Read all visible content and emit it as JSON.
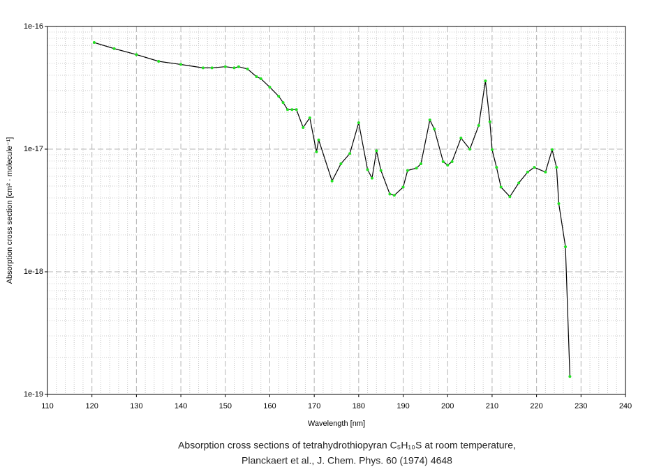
{
  "chart_data": {
    "type": "line",
    "title": [
      "Absorption cross sections of tetrahydrothiopyran C₅H₁₀S at room temperature,",
      "Planckaert et al., J. Chem. Phys. 60 (1974) 4648"
    ],
    "xlabel": "Wavelength [nm]",
    "ylabel": "Absorption cross section [cm² · molecule⁻¹]",
    "xlim": [
      110,
      240
    ],
    "xticks": [
      110,
      120,
      130,
      140,
      150,
      160,
      170,
      180,
      190,
      200,
      210,
      220,
      230,
      240
    ],
    "xminorticks": [
      112,
      114,
      116,
      118,
      122,
      124,
      126,
      128,
      132,
      134,
      136,
      138,
      142,
      144,
      146,
      148,
      152,
      154,
      156,
      158,
      162,
      164,
      166,
      168,
      172,
      174,
      176,
      178,
      182,
      184,
      186,
      188,
      192,
      194,
      196,
      198,
      202,
      204,
      206,
      208,
      212,
      214,
      216,
      218,
      222,
      224,
      226,
      228,
      232,
      234,
      236,
      238
    ],
    "ylim": [
      1e-19,
      1e-16
    ],
    "log_y": true,
    "yticks": [
      {
        "value": 1e-19,
        "label": "1e-19"
      },
      {
        "value": 1e-18,
        "label": "1e-18"
      },
      {
        "value": 1e-17,
        "label": "1e-17"
      },
      {
        "value": 1e-16,
        "label": "1e-16"
      }
    ],
    "yminorticks": [
      2e-19,
      3e-19,
      4e-19,
      5e-19,
      6e-19,
      7e-19,
      8e-19,
      9e-19,
      2e-18,
      3e-18,
      4e-18,
      5e-18,
      6e-18,
      7e-18,
      8e-18,
      9e-18,
      2e-17,
      3e-17,
      4e-17,
      5e-17,
      6e-17,
      7e-17,
      8e-17,
      9e-17
    ],
    "grid": true,
    "series": [
      {
        "color": "#000000",
        "marker_color": "#22e022",
        "x": [
          120.5,
          125,
          130,
          135,
          140,
          145,
          147,
          150,
          152,
          153,
          155,
          157,
          158,
          160,
          162,
          163,
          164,
          165,
          166,
          167.5,
          169,
          170.5,
          171,
          174,
          176,
          178,
          180,
          182,
          183,
          184,
          185,
          187,
          188,
          190,
          191,
          193,
          194,
          196,
          197,
          199,
          200,
          201,
          203,
          205,
          207,
          208.5,
          209.5,
          210,
          211,
          212,
          214,
          216,
          218,
          219.5,
          222,
          223.5,
          224.5,
          225,
          226.5,
          227.5
        ],
        "values": [
          7.4e-17,
          6.6e-17,
          5.9e-17,
          5.2e-17,
          4.9e-17,
          4.6e-17,
          4.6e-17,
          4.7e-17,
          4.6e-17,
          4.7e-17,
          4.5e-17,
          3.9e-17,
          3.75e-17,
          3.2e-17,
          2.7e-17,
          2.4e-17,
          2.1e-17,
          2.1e-17,
          2.1e-17,
          1.5e-17,
          1.8e-17,
          9.5e-18,
          1.19e-17,
          5.5e-18,
          7.6e-18,
          9.2e-18,
          1.64e-17,
          6.8e-18,
          5.8e-18,
          9.7e-18,
          6.7e-18,
          4.3e-18,
          4.2e-18,
          4.9e-18,
          6.7e-18,
          7e-18,
          7.6e-18,
          1.73e-17,
          1.46e-17,
          7.9e-18,
          7.4e-18,
          7.9e-18,
          1.23e-17,
          1e-17,
          1.56e-17,
          3.6e-17,
          1.67e-17,
          9.9e-18,
          7.1e-18,
          4.9e-18,
          4.1e-18,
          5.3e-18,
          6.5e-18,
          7.1e-18,
          6.5e-18,
          9.9e-18,
          7.1e-18,
          3.6e-18,
          1.6e-18,
          1.4e-19
        ]
      }
    ]
  }
}
